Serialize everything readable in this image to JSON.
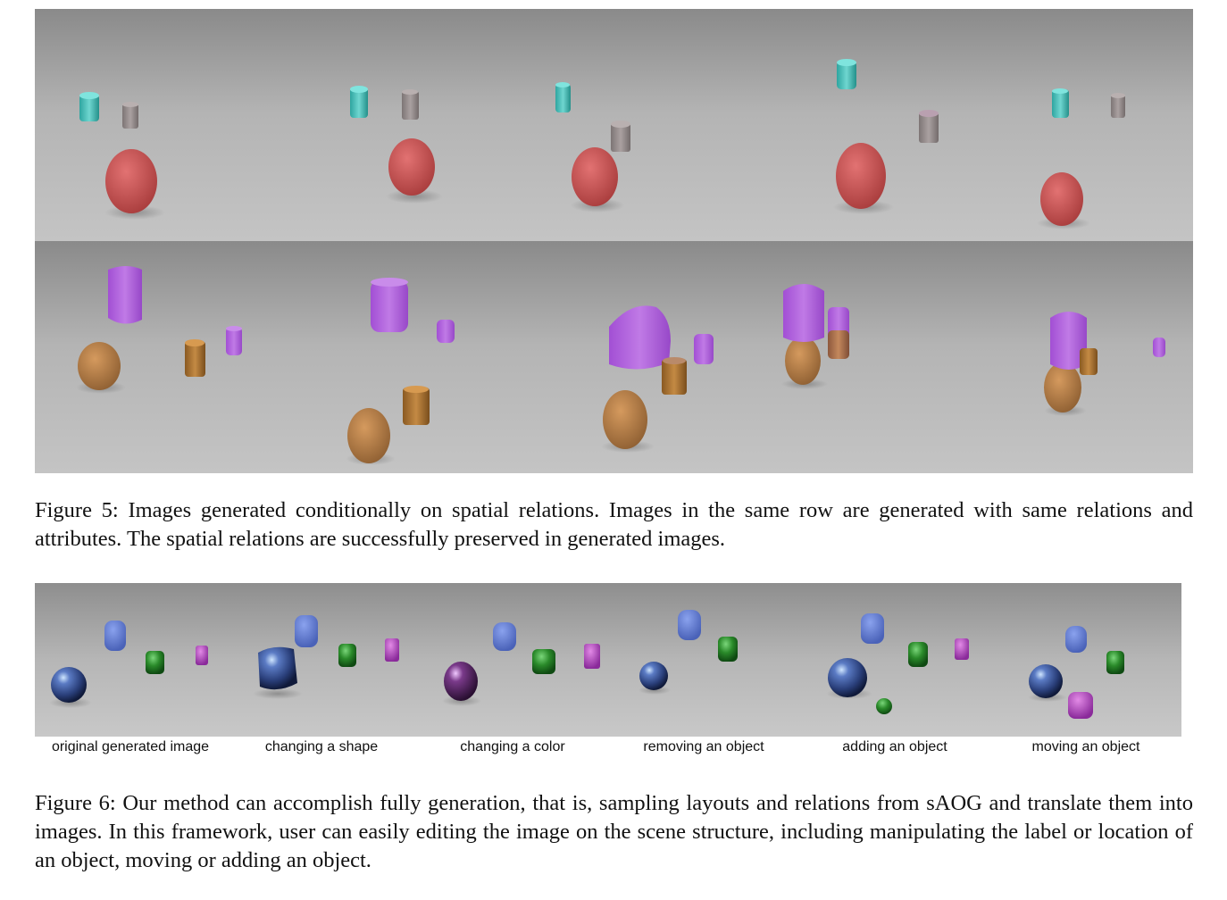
{
  "figure5": {
    "caption": "Figure 5: Images generated conditionally on spatial relations. Images in the same row are generated with same relations and attributes. The spatial relations are successfully preserved in generated images."
  },
  "figure6": {
    "panel_labels": [
      "original generated image",
      "changing a shape",
      "changing a color",
      "removing an object",
      "adding an object",
      "moving an object"
    ],
    "caption": "Figure 6: Our method can accomplish fully generation, that is, sampling layouts and relations from sAOG and translate them into images. In this framework, user can easily editing the image on the scene structure, including manipulating the label or location of an object, moving or adding an object."
  }
}
